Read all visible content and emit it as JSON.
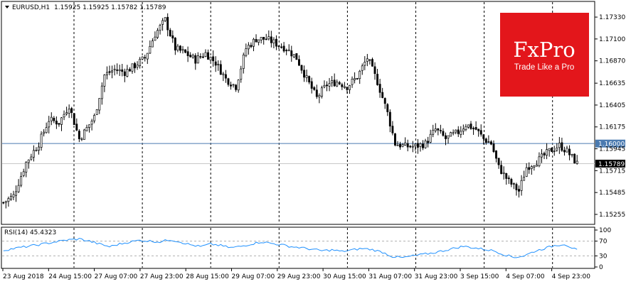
{
  "header": {
    "symbol": "EURUSD,H1",
    "ohlc": "1.15925 1.15925 1.15782 1.15789"
  },
  "logo": {
    "brand": "FxPro",
    "tagline": "Trade Like a Pro",
    "color": "#e3161b"
  },
  "chart_data": [
    {
      "type": "candlestick",
      "symbol": "EURUSD",
      "timeframe": "H1",
      "ylim": [
        1.1518,
        1.1745
      ],
      "y_ticks": [
        "1.17330",
        "1.17100",
        "1.16870",
        "1.16635",
        "1.16405",
        "1.16175",
        "1.15945",
        "1.15715",
        "1.15485",
        "1.15255"
      ],
      "x_ticks": [
        "23 Aug 2018",
        "24 Aug 15:00",
        "27 Aug 07:00",
        "27 Aug 23:00",
        "28 Aug 15:00",
        "29 Aug 07:00",
        "29 Aug 23:00",
        "30 Aug 15:00",
        "31 Aug 07:00",
        "31 Aug 23:00",
        "3 Sep 15:00",
        "4 Sep 07:00",
        "4 Sep 23:00"
      ],
      "period_separators": 8,
      "grid": false,
      "horizontal_lines": [
        {
          "value": 1.16,
          "label": "1.16000",
          "color": "#4a7ab0"
        },
        {
          "value": 1.15789,
          "label": "1.15789",
          "color": "#000000"
        }
      ],
      "close_path": [
        [
          0,
          1.1538
        ],
        [
          4,
          1.1545
        ],
        [
          9,
          1.158
        ],
        [
          14,
          1.16
        ],
        [
          18,
          1.1625
        ],
        [
          22,
          1.1622
        ],
        [
          26,
          1.164
        ],
        [
          30,
          1.1605
        ],
        [
          32,
          1.1612
        ],
        [
          36,
          1.1628
        ],
        [
          40,
          1.1672
        ],
        [
          44,
          1.1678
        ],
        [
          48,
          1.1675
        ],
        [
          52,
          1.1682
        ],
        [
          56,
          1.169
        ],
        [
          60,
          1.1715
        ],
        [
          64,
          1.173
        ],
        [
          68,
          1.17
        ],
        [
          72,
          1.1695
        ],
        [
          76,
          1.1688
        ],
        [
          80,
          1.1695
        ],
        [
          84,
          1.1685
        ],
        [
          88,
          1.1668
        ],
        [
          92,
          1.166
        ],
        [
          96,
          1.17
        ],
        [
          100,
          1.171
        ],
        [
          104,
          1.171
        ],
        [
          108,
          1.1705
        ],
        [
          112,
          1.17
        ],
        [
          116,
          1.169
        ],
        [
          120,
          1.1668
        ],
        [
          124,
          1.1648
        ],
        [
          128,
          1.1662
        ],
        [
          132,
          1.1665
        ],
        [
          136,
          1.166
        ],
        [
          140,
          1.167
        ],
        [
          144,
          1.169
        ],
        [
          148,
          1.1665
        ],
        [
          152,
          1.1632
        ],
        [
          155,
          1.16
        ],
        [
          159,
          1.1597
        ],
        [
          163,
          1.1597
        ],
        [
          167,
          1.16
        ],
        [
          171,
          1.1615
        ],
        [
          175,
          1.1605
        ],
        [
          180,
          1.1612
        ],
        [
          183,
          1.162
        ],
        [
          187,
          1.1615
        ],
        [
          190,
          1.1605
        ],
        [
          193,
          1.16
        ],
        [
          196,
          1.1575
        ],
        [
          200,
          1.156
        ],
        [
          204,
          1.155
        ],
        [
          207,
          1.1575
        ],
        [
          212,
          1.1583
        ],
        [
          216,
          1.1592
        ],
        [
          220,
          1.1598
        ],
        [
          223,
          1.1592
        ],
        [
          227,
          1.15789
        ]
      ],
      "candle_count": 228,
      "candle_colors": {
        "up": "#ffffff",
        "down": "#000000",
        "outline": "#000000"
      }
    },
    {
      "type": "line",
      "name": "RSI(14)",
      "label": "RSI(14) 45.4323",
      "value": 45.4323,
      "y_ticks": [
        "100",
        "70",
        "30",
        "0"
      ],
      "levels": [
        70,
        30
      ],
      "ylim": [
        0,
        100
      ],
      "color": "#1e90ff",
      "rsi_path": [
        [
          0,
          45
        ],
        [
          6,
          52
        ],
        [
          12,
          58
        ],
        [
          18,
          65
        ],
        [
          24,
          72
        ],
        [
          30,
          76
        ],
        [
          34,
          70
        ],
        [
          38,
          62
        ],
        [
          42,
          55
        ],
        [
          46,
          62
        ],
        [
          50,
          68
        ],
        [
          54,
          72
        ],
        [
          58,
          70
        ],
        [
          62,
          68
        ],
        [
          66,
          74
        ],
        [
          70,
          68
        ],
        [
          74,
          60
        ],
        [
          78,
          55
        ],
        [
          82,
          62
        ],
        [
          86,
          58
        ],
        [
          90,
          52
        ],
        [
          94,
          56
        ],
        [
          98,
          62
        ],
        [
          102,
          68
        ],
        [
          106,
          64
        ],
        [
          110,
          60
        ],
        [
          114,
          55
        ],
        [
          118,
          52
        ],
        [
          122,
          48
        ],
        [
          126,
          44
        ],
        [
          130,
          46
        ],
        [
          134,
          42
        ],
        [
          138,
          46
        ],
        [
          142,
          50
        ],
        [
          146,
          47
        ],
        [
          150,
          40
        ],
        [
          154,
          28
        ],
        [
          158,
          25
        ],
        [
          162,
          30
        ],
        [
          166,
          34
        ],
        [
          170,
          38
        ],
        [
          174,
          44
        ],
        [
          178,
          50
        ],
        [
          182,
          56
        ],
        [
          186,
          52
        ],
        [
          190,
          48
        ],
        [
          194,
          44
        ],
        [
          198,
          34
        ],
        [
          202,
          26
        ],
        [
          206,
          30
        ],
        [
          210,
          42
        ],
        [
          214,
          50
        ],
        [
          218,
          58
        ],
        [
          222,
          62
        ],
        [
          225,
          52
        ],
        [
          227,
          45
        ]
      ]
    }
  ]
}
